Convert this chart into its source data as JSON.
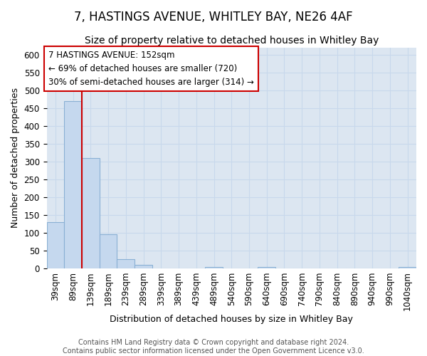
{
  "title": "7, HASTINGS AVENUE, WHITLEY BAY, NE26 4AF",
  "subtitle": "Size of property relative to detached houses in Whitley Bay",
  "xlabel": "Distribution of detached houses by size in Whitley Bay",
  "ylabel": "Number of detached properties",
  "footer_line1": "Contains HM Land Registry data © Crown copyright and database right 2024.",
  "footer_line2": "Contains public sector information licensed under the Open Government Licence v3.0.",
  "bins": [
    "39sqm",
    "89sqm",
    "139sqm",
    "189sqm",
    "239sqm",
    "289sqm",
    "339sqm",
    "389sqm",
    "439sqm",
    "489sqm",
    "540sqm",
    "590sqm",
    "640sqm",
    "690sqm",
    "740sqm",
    "790sqm",
    "840sqm",
    "890sqm",
    "940sqm",
    "990sqm",
    "1040sqm"
  ],
  "values": [
    130,
    470,
    310,
    95,
    26,
    10,
    0,
    0,
    0,
    4,
    0,
    0,
    4,
    0,
    0,
    0,
    0,
    0,
    0,
    0,
    4
  ],
  "bar_color": "#c5d8ee",
  "bar_edge_color": "#8ab0d4",
  "vline_color": "#cc0000",
  "annotation_line1": "7 HASTINGS AVENUE: 152sqm",
  "annotation_line2": "← 69% of detached houses are smaller (720)",
  "annotation_line3": "30% of semi-detached houses are larger (314) →",
  "annotation_box_color": "#ffffff",
  "annotation_box_edge": "#cc0000",
  "ylim": [
    0,
    620
  ],
  "yticks": [
    0,
    50,
    100,
    150,
    200,
    250,
    300,
    350,
    400,
    450,
    500,
    550,
    600
  ],
  "grid_color": "#c8d8ec",
  "bg_color": "#dce6f1",
  "title_fontsize": 12,
  "subtitle_fontsize": 10,
  "axis_label_fontsize": 9,
  "tick_fontsize": 8.5,
  "annotation_fontsize": 8.5,
  "footer_fontsize": 7
}
